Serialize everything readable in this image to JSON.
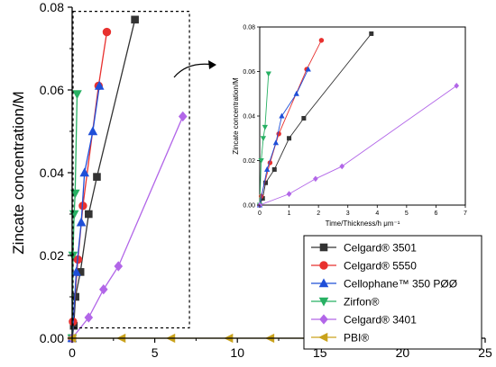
{
  "chart_data": [
    {
      "type": "line",
      "title": "",
      "xlabel": "",
      "ylabel": "Zincate concentration/M",
      "xlim": [
        0,
        25
      ],
      "ylim": [
        0,
        0.08
      ],
      "xticks": [
        "0",
        "5",
        "10",
        "15",
        "20",
        "25"
      ],
      "yticks": [
        "0.00",
        "0.02",
        "0.04",
        "0.06",
        "0.08"
      ],
      "legend_position": "bottom-right",
      "series": [
        {
          "name": "Celgard® 3501",
          "color": "#333333",
          "marker": "square",
          "x": [
            0,
            0.1,
            0.2,
            0.5,
            1.0,
            1.5,
            3.8
          ],
          "y": [
            0,
            0.003,
            0.01,
            0.016,
            0.03,
            0.039,
            0.077
          ]
        },
        {
          "name": "Celgard® 5550",
          "color": "#e8312f",
          "marker": "circle",
          "x": [
            0,
            0.05,
            0.35,
            0.65,
            1.6,
            2.1
          ],
          "y": [
            0,
            0.004,
            0.019,
            0.032,
            0.061,
            0.074
          ]
        },
        {
          "name": "Cellophane™ 350 PØØ",
          "color": "#1f4fd8",
          "marker": "triangle-up",
          "x": [
            0,
            0.25,
            0.55,
            0.75,
            1.25,
            1.65
          ],
          "y": [
            0,
            0.016,
            0.028,
            0.04,
            0.05,
            0.061
          ]
        },
        {
          "name": "Zirfon®",
          "color": "#27b063",
          "marker": "triangle-down",
          "x": [
            0,
            0.05,
            0.12,
            0.18,
            0.3
          ],
          "y": [
            0,
            0.02,
            0.03,
            0.035,
            0.059
          ]
        },
        {
          "name": "Celgard® 3401",
          "color": "#b266e8",
          "marker": "diamond",
          "x": [
            0,
            1.0,
            1.9,
            2.8,
            6.7
          ],
          "y": [
            0,
            0.005,
            0.0118,
            0.0174,
            0.0536
          ]
        },
        {
          "name": "PBI®",
          "color": "#c9a21c",
          "marker": "triangle-left",
          "x": [
            0,
            3,
            6,
            9.5,
            12,
            15,
            21
          ],
          "y": [
            0,
            0,
            0,
            0,
            0,
            0,
            0
          ]
        }
      ],
      "zoom_box": {
        "x": [
          0,
          7.1
        ],
        "y": [
          0.0025,
          0.079
        ]
      }
    },
    {
      "type": "line",
      "title": "",
      "xlabel": "Time/Thickness/h μm⁻¹",
      "ylabel": "Zincate concentration/M",
      "xlim": [
        0,
        7
      ],
      "ylim": [
        0,
        0.08
      ],
      "xticks": [
        "0",
        "1",
        "2",
        "3",
        "4",
        "5",
        "6",
        "7"
      ],
      "yticks": [
        "0.00",
        "0.02",
        "0.04",
        "0.06",
        "0.08"
      ],
      "series": [
        {
          "name": "Celgard® 3501",
          "color": "#333333",
          "marker": "square",
          "x": [
            0,
            0.1,
            0.2,
            0.5,
            1.0,
            1.5,
            3.8
          ],
          "y": [
            0,
            0.003,
            0.01,
            0.016,
            0.03,
            0.039,
            0.077
          ]
        },
        {
          "name": "Celgard® 5550",
          "color": "#e8312f",
          "marker": "circle",
          "x": [
            0,
            0.05,
            0.35,
            0.65,
            1.6,
            2.1
          ],
          "y": [
            0,
            0.004,
            0.019,
            0.032,
            0.061,
            0.074
          ]
        },
        {
          "name": "Cellophane™ 350 PØØ",
          "color": "#1f4fd8",
          "marker": "triangle-up",
          "x": [
            0,
            0.25,
            0.55,
            0.75,
            1.25,
            1.65
          ],
          "y": [
            0,
            0.016,
            0.028,
            0.04,
            0.05,
            0.061
          ]
        },
        {
          "name": "Zirfon®",
          "color": "#27b063",
          "marker": "triangle-down",
          "x": [
            0,
            0.05,
            0.12,
            0.18,
            0.3
          ],
          "y": [
            0,
            0.02,
            0.03,
            0.035,
            0.059
          ]
        },
        {
          "name": "Celgard® 3401",
          "color": "#b266e8",
          "marker": "diamond",
          "x": [
            0,
            1.0,
            1.9,
            2.8,
            6.7
          ],
          "y": [
            0,
            0.005,
            0.0118,
            0.0174,
            0.0536
          ]
        }
      ]
    }
  ]
}
